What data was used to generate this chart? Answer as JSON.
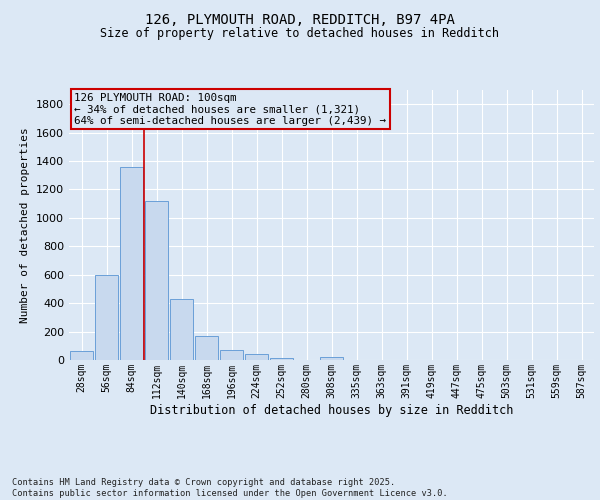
{
  "title1": "126, PLYMOUTH ROAD, REDDITCH, B97 4PA",
  "title2": "Size of property relative to detached houses in Redditch",
  "xlabel": "Distribution of detached houses by size in Redditch",
  "ylabel": "Number of detached properties",
  "bar_color": "#c8d9ee",
  "bar_edge_color": "#6a9fd8",
  "categories": [
    "28sqm",
    "56sqm",
    "84sqm",
    "112sqm",
    "140sqm",
    "168sqm",
    "196sqm",
    "224sqm",
    "252sqm",
    "280sqm",
    "308sqm",
    "335sqm",
    "363sqm",
    "391sqm",
    "419sqm",
    "447sqm",
    "475sqm",
    "503sqm",
    "531sqm",
    "559sqm",
    "587sqm"
  ],
  "values": [
    60,
    600,
    1360,
    1120,
    430,
    170,
    70,
    40,
    15,
    0,
    18,
    0,
    0,
    0,
    0,
    0,
    0,
    0,
    0,
    0,
    0
  ],
  "ylim": [
    0,
    1900
  ],
  "yticks": [
    0,
    200,
    400,
    600,
    800,
    1000,
    1200,
    1400,
    1600,
    1800
  ],
  "annotation_box_text": "126 PLYMOUTH ROAD: 100sqm\n← 34% of detached houses are smaller (1,321)\n64% of semi-detached houses are larger (2,439) →",
  "vline_x": 2.5,
  "vline_color": "#cc0000",
  "annotation_box_color": "#cc0000",
  "background_color": "#dce8f5",
  "grid_color": "#ffffff",
  "footer_text": "Contains HM Land Registry data © Crown copyright and database right 2025.\nContains public sector information licensed under the Open Government Licence v3.0.",
  "fig_bg_color": "#dce8f5"
}
